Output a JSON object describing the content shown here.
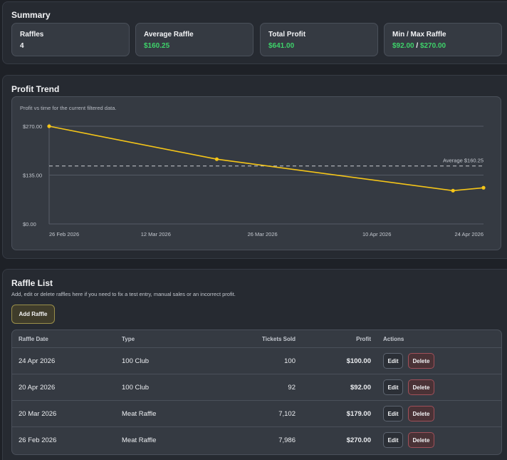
{
  "summary": {
    "title": "Summary",
    "cards": [
      {
        "label": "Raffles",
        "value": "4"
      },
      {
        "label": "Average Raffle",
        "value": "$160.25"
      },
      {
        "label": "Total Profit",
        "value": "$641.00"
      },
      {
        "label": "Min / Max Raffle",
        "min": "$92.00",
        "separator": " / ",
        "max": "$270.00"
      }
    ]
  },
  "trend": {
    "title": "Profit Trend",
    "description": "Profit vs time for the current filtered data."
  },
  "chart_data": {
    "type": "line",
    "title": "",
    "xlabel": "",
    "ylabel": "",
    "x": [
      "2026-02-26",
      "2026-03-20",
      "2026-04-20",
      "2026-04-24"
    ],
    "series": [
      {
        "values": [
          270,
          179,
          92,
          100
        ]
      }
    ],
    "ylim": [
      0,
      270
    ],
    "y_ticks": [
      0,
      135,
      270
    ],
    "y_tick_labels": [
      "$0.00",
      "$135.00",
      "$270.00"
    ],
    "x_ticks": [
      "2026-02-26",
      "2026-03-12",
      "2026-03-26",
      "2026-04-10",
      "2026-04-24"
    ],
    "x_tick_labels": [
      "26 Feb 2026",
      "12 Mar 2026",
      "26 Mar 2026",
      "10 Apr 2026",
      "24 Apr 2026"
    ],
    "average": {
      "value": 160.25,
      "label": "Average $160.25"
    },
    "line_color": "#f5c518",
    "grid": true
  },
  "list": {
    "title": "Raffle List",
    "description": "Add, edit or delete raffles here if you need to fix a test entry, manual sales or an incorrect profit.",
    "add_label": "Add Raffle",
    "columns": [
      "Raffle Date",
      "Type",
      "Tickets Sold",
      "Profit",
      "Actions"
    ],
    "rows": [
      {
        "date": "24 Apr 2026",
        "type": "100 Club",
        "tickets": "100",
        "profit": "$100.00"
      },
      {
        "date": "20 Apr 2026",
        "type": "100 Club",
        "tickets": "92",
        "profit": "$92.00"
      },
      {
        "date": "20 Mar 2026",
        "type": "Meat Raffle",
        "tickets": "7,102",
        "profit": "$179.00"
      },
      {
        "date": "26 Feb 2026",
        "type": "Meat Raffle",
        "tickets": "7,986",
        "profit": "$270.00"
      }
    ],
    "edit_label": "Edit",
    "delete_label": "Delete"
  },
  "colors": {
    "accent_green": "#3ed26a",
    "line": "#f5c518",
    "delete_border": "#a0505a"
  }
}
